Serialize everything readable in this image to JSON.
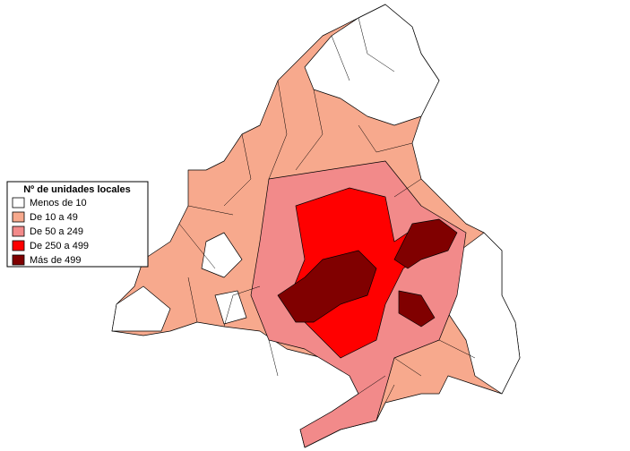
{
  "legend": {
    "title": "Nº de unidades locales",
    "items": [
      {
        "label": "Menos de 10",
        "color": "#ffffff"
      },
      {
        "label": "De 10 a 49",
        "color": "#f7a98d"
      },
      {
        "label": "De 50 a 249",
        "color": "#f28a8a"
      },
      {
        "label": "De 250 a 499",
        "color": "#ff0000"
      },
      {
        "label": "Más de 499",
        "color": "#800000"
      }
    ]
  }
}
